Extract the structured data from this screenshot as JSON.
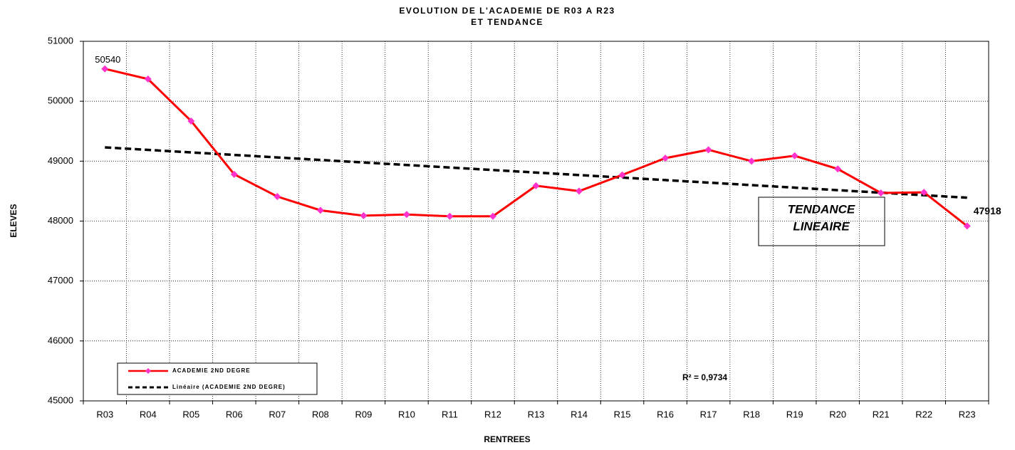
{
  "chart_data": {
    "type": "line",
    "title_lines": [
      "EVOLUTION DE L'ACADEMIE DE R03 A R23",
      "ET TENDANCE"
    ],
    "x_label": "RENTREES",
    "y_label": "ELEVES",
    "categories": [
      "R03",
      "R04",
      "R05",
      "R06",
      "R07",
      "R08",
      "R09",
      "R10",
      "R11",
      "R12",
      "R13",
      "R14",
      "R15",
      "R16",
      "R17",
      "R18",
      "R19",
      "R20",
      "R21",
      "R22",
      "R23"
    ],
    "series": [
      {
        "name": "ACADEMIE 2ND DEGRE",
        "color": "#ff0000",
        "marker_color": "#ff33cc",
        "values": [
          50540,
          50370,
          49670,
          48780,
          48410,
          48180,
          48090,
          48110,
          48080,
          48080,
          48590,
          48500,
          48770,
          49050,
          49190,
          49000,
          49090,
          48870,
          48470,
          48480,
          47918
        ]
      },
      {
        "name": "Linéaire (ACADEMIE 2ND DEGRE)",
        "color": "#000000",
        "dashed": true,
        "values": [
          49230,
          49188,
          49146,
          49104,
          49062,
          49020,
          48978,
          48936,
          48894,
          48852,
          48810,
          48768,
          48726,
          48684,
          48642,
          48600,
          48558,
          48516,
          48474,
          48432,
          48390
        ]
      }
    ],
    "ylim": [
      45000,
      51000
    ],
    "yticks": [
      45000,
      46000,
      47000,
      48000,
      49000,
      50000,
      51000
    ],
    "grid": true,
    "annotations": {
      "trend_label": [
        "TENDANCE",
        "LINEAIRE"
      ],
      "r_squared": "R² = 0,9734"
    }
  }
}
